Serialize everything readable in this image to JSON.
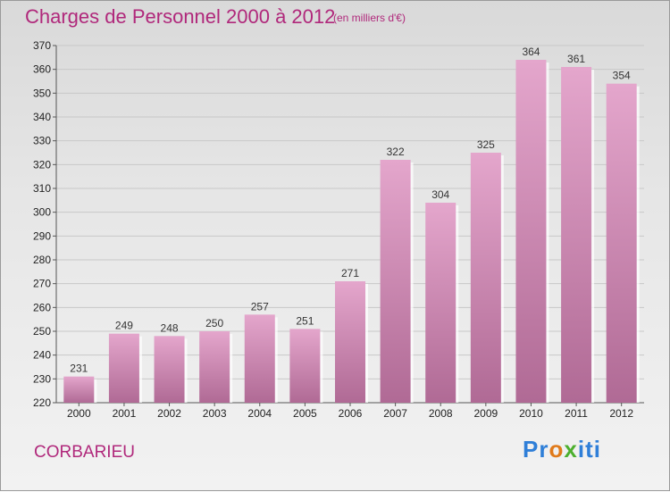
{
  "title": "Charges de Personnel 2000 à 2012",
  "subtitle": "(en milliers d'€)",
  "commune": "CORBARIEU",
  "logo": {
    "text": "Proxiti",
    "letters": [
      "P",
      "r",
      "o",
      "x",
      "i",
      "t",
      "i"
    ],
    "colors": [
      "#2f7fd8",
      "#2f7fd8",
      "#e07a1a",
      "#4caf2e",
      "#2f7fd8",
      "#2f7fd8",
      "#2f7fd8"
    ]
  },
  "colors": {
    "accent": "#b0287b",
    "bar_top": "#e4a6cc",
    "bar_bottom": "#b06a95"
  },
  "chart_data": {
    "type": "bar",
    "categories": [
      "2000",
      "2001",
      "2002",
      "2003",
      "2004",
      "2005",
      "2006",
      "2007",
      "2008",
      "2009",
      "2010",
      "2011",
      "2012"
    ],
    "values": [
      231,
      249,
      248,
      250,
      257,
      251,
      271,
      322,
      304,
      325,
      364,
      361,
      354
    ],
    "ylim": [
      220,
      370
    ],
    "yticks": [
      220,
      230,
      240,
      250,
      260,
      270,
      280,
      290,
      300,
      310,
      320,
      330,
      340,
      350,
      360,
      370
    ],
    "grid": true,
    "xlabel": "",
    "ylabel": ""
  }
}
